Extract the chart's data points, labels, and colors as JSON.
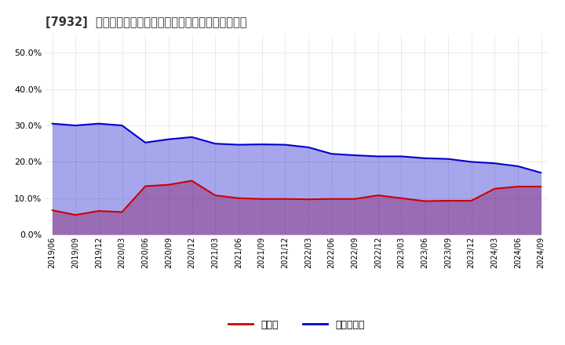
{
  "title": "[7932]  現預金、有利子負債の総資産に対する比率の推移",
  "x_labels": [
    "2019/06",
    "2019/09",
    "2019/12",
    "2020/03",
    "2020/06",
    "2020/09",
    "2020/12",
    "2021/03",
    "2021/06",
    "2021/09",
    "2021/12",
    "2022/03",
    "2022/06",
    "2022/09",
    "2022/12",
    "2023/03",
    "2023/06",
    "2023/09",
    "2023/12",
    "2024/03",
    "2024/06",
    "2024/09"
  ],
  "cash": [
    0.067,
    0.054,
    0.065,
    0.062,
    0.133,
    0.137,
    0.148,
    0.108,
    0.1,
    0.098,
    0.098,
    0.097,
    0.098,
    0.098,
    0.108,
    0.1,
    0.092,
    0.093,
    0.093,
    0.126,
    0.132,
    0.132
  ],
  "debt": [
    0.305,
    0.3,
    0.305,
    0.3,
    0.253,
    0.262,
    0.268,
    0.25,
    0.247,
    0.248,
    0.247,
    0.24,
    0.222,
    0.218,
    0.215,
    0.215,
    0.21,
    0.208,
    0.2,
    0.196,
    0.188,
    0.17
  ],
  "cash_color": "#cc0000",
  "debt_color": "#0000cc",
  "cash_fill_color": "#dd8888",
  "debt_fill_color": "#8888dd",
  "bg_color": "#ffffff",
  "plot_bg_color": "#ffffff",
  "grid_color": "#aaaaaa",
  "ylim": [
    0.0,
    0.55
  ],
  "yticks": [
    0.0,
    0.1,
    0.2,
    0.3,
    0.4,
    0.5
  ],
  "legend_cash": "現預金",
  "legend_debt": "有利子負債",
  "line_width": 1.5,
  "fill_alpha": 0.35
}
